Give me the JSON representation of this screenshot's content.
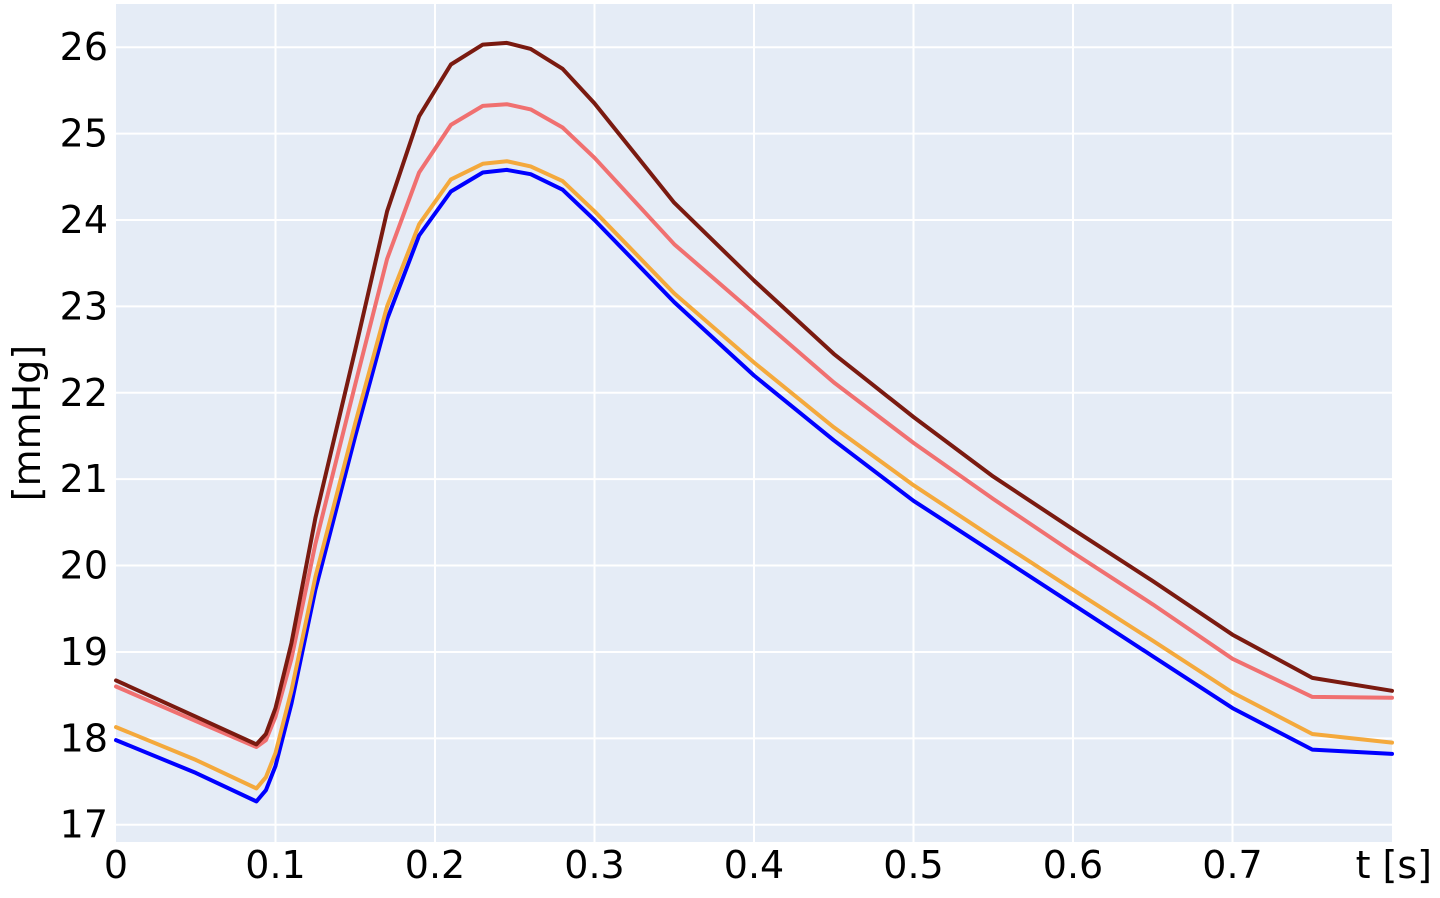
{
  "chart_data": {
    "type": "line",
    "title": "",
    "xlabel": "t [s]",
    "ylabel": "[mmHg]",
    "xlim": [
      0,
      0.8
    ],
    "ylim": [
      16.8,
      26.5
    ],
    "grid": true,
    "background": "#e5ecf6",
    "xticks": [
      0,
      0.1,
      0.2,
      0.3,
      0.4,
      0.5,
      0.6,
      0.7
    ],
    "xtick_labels": [
      "0",
      "0.1",
      "0.2",
      "0.3",
      "0.4",
      "0.5",
      "0.6",
      "0.7"
    ],
    "yticks": [
      17,
      18,
      19,
      20,
      21,
      22,
      23,
      24,
      25,
      26
    ],
    "ytick_labels": [
      "17",
      "18",
      "19",
      "20",
      "21",
      "22",
      "23",
      "24",
      "25",
      "26"
    ],
    "x": [
      0,
      0.05,
      0.088,
      0.094,
      0.1,
      0.11,
      0.125,
      0.15,
      0.17,
      0.19,
      0.21,
      0.23,
      0.245,
      0.26,
      0.28,
      0.3,
      0.35,
      0.4,
      0.45,
      0.5,
      0.55,
      0.6,
      0.65,
      0.7,
      0.75,
      0.8
    ],
    "series": [
      {
        "color": "#0000ff",
        "values": [
          17.98,
          17.6,
          17.27,
          17.4,
          17.68,
          18.4,
          19.72,
          21.5,
          22.85,
          23.82,
          24.33,
          24.55,
          24.58,
          24.53,
          24.35,
          24.0,
          23.05,
          22.2,
          21.45,
          20.75,
          20.15,
          19.55,
          18.95,
          18.35,
          17.87,
          17.82
        ]
      },
      {
        "color": "#f4a93c",
        "values": [
          18.13,
          17.75,
          17.42,
          17.55,
          17.83,
          18.55,
          19.87,
          21.65,
          23.0,
          23.95,
          24.47,
          24.65,
          24.68,
          24.62,
          24.45,
          24.1,
          23.15,
          22.35,
          21.6,
          20.93,
          20.32,
          19.72,
          19.13,
          18.53,
          18.05,
          17.95
        ]
      },
      {
        "color": "#f07070",
        "values": [
          18.6,
          18.2,
          17.9,
          17.98,
          18.25,
          18.92,
          20.25,
          22.1,
          23.55,
          24.55,
          25.1,
          25.32,
          25.34,
          25.28,
          25.07,
          24.72,
          23.72,
          22.92,
          22.12,
          21.42,
          20.77,
          20.15,
          19.55,
          18.92,
          18.48,
          18.47
        ]
      },
      {
        "color": "#7a1a10",
        "values": [
          18.67,
          18.25,
          17.93,
          18.05,
          18.35,
          19.1,
          20.55,
          22.5,
          24.1,
          25.2,
          25.8,
          26.03,
          26.05,
          25.98,
          25.75,
          25.35,
          24.2,
          23.3,
          22.45,
          21.72,
          21.03,
          20.42,
          19.82,
          19.2,
          18.7,
          18.55
        ]
      }
    ]
  }
}
